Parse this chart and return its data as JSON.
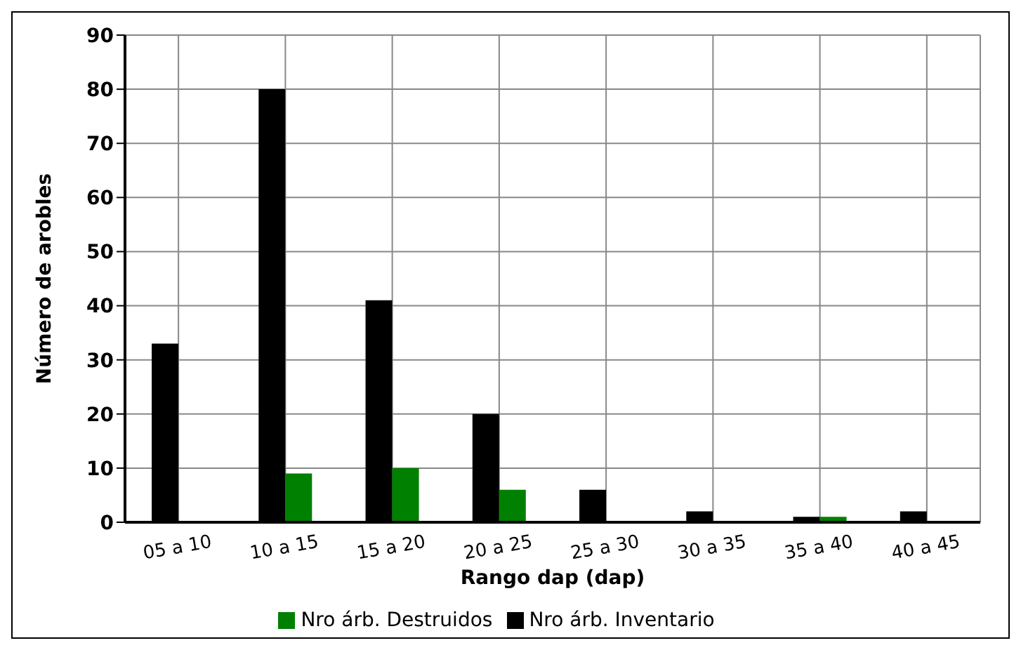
{
  "chart_data": {
    "type": "bar",
    "xlabel": "Rango dap (dap)",
    "ylabel": "Número de arobles",
    "categories": [
      "05 a 10",
      "10 a 15",
      "15 a 20",
      "20 a 25",
      "25 a 30",
      "30 a 35",
      "35 a 40",
      "40 a 45"
    ],
    "series": [
      {
        "name": "Nro árb. Inventario",
        "color": "#000000",
        "values": [
          33,
          80,
          41,
          20,
          6,
          2,
          1,
          2
        ]
      },
      {
        "name": "Nro árb. Destruidos",
        "color": "#008000",
        "values": [
          0,
          9,
          10,
          6,
          0,
          0,
          1,
          0
        ]
      }
    ],
    "ylim": [
      0,
      90
    ],
    "yticks": [
      0,
      10,
      20,
      30,
      40,
      50,
      60,
      70,
      80,
      90
    ],
    "grid": true,
    "legend": "bottom"
  }
}
